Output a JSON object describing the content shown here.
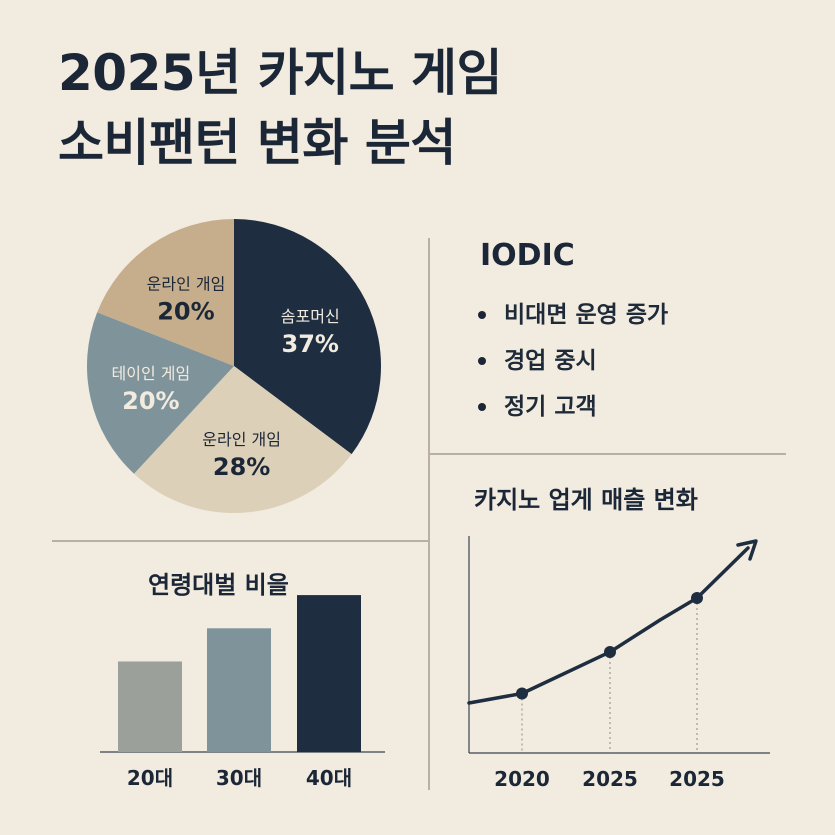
{
  "title_line1": "2025년 카지노 게임",
  "title_line2": "소비팬턴 변화 분석",
  "colors": {
    "background": "#f2ebe0",
    "navy": "#1e2d40",
    "tan": "#c6ae8c",
    "beige": "#ddd0b8",
    "slate": "#7f939b",
    "gray": "#9ba09a",
    "text": "#1b2636"
  },
  "info": {
    "heading": "IODIC",
    "bullets": [
      "비대면 운영 증가",
      "경업 중시",
      "정기 고객"
    ]
  },
  "chart_data": [
    {
      "type": "pie",
      "slices": [
        {
          "label": "솜포머신",
          "value": 37,
          "display": "37%",
          "color": "#1e2d40"
        },
        {
          "label": "운라인 개임",
          "value": 28,
          "display": "28%",
          "color": "#ddd0b8"
        },
        {
          "label": "테이인 게임",
          "value": 20,
          "display": "20%",
          "color": "#7f939b"
        },
        {
          "label": "운라인 개임",
          "value": 20,
          "display": "20%",
          "color": "#c6ae8c"
        }
      ]
    },
    {
      "type": "bar",
      "title": "연령대벌 비을",
      "categories": [
        "20대",
        "30대",
        "40대"
      ],
      "values": [
        30,
        41,
        52
      ],
      "colors": [
        "#9ba09a",
        "#7f939b",
        "#1e2d40"
      ]
    },
    {
      "type": "line",
      "title": "카지노 업게 매츨 변화",
      "categories": [
        "2020",
        "2025",
        "2025"
      ],
      "values": [
        1,
        2,
        3.3
      ]
    }
  ]
}
